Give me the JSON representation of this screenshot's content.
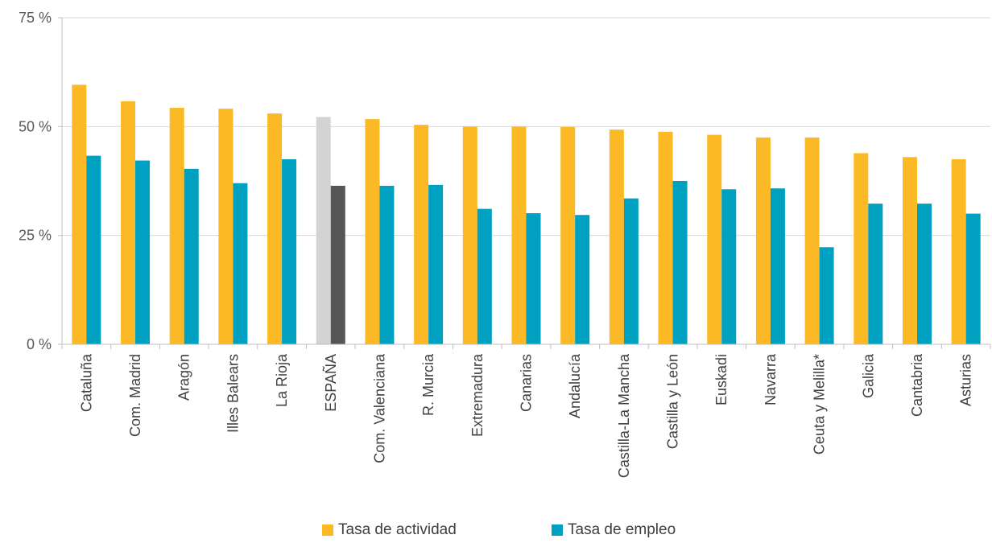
{
  "chart_data": {
    "type": "bar",
    "categories": [
      "Cataluña",
      "Com. Madrid",
      "Aragón",
      "Illes Balears",
      "La Rioja",
      "ESPAÑA",
      "Com. Valenciana",
      "R. Murcia",
      "Extremadura",
      "Canarias",
      "Andalucía",
      "Castilla-La Mancha",
      "Castilla y León",
      "Euskadi",
      "Navarra",
      "Ceuta y Melilla*",
      "Galicia",
      "Cantabria",
      "Asturias"
    ],
    "series": [
      {
        "name": "Tasa de actividad",
        "color": "#FBBA25",
        "highlight_color": "#D3D3D3",
        "values": [
          59.6,
          55.8,
          54.3,
          54.1,
          53.0,
          52.2,
          51.7,
          50.4,
          50.0,
          50.0,
          49.9,
          49.3,
          48.8,
          48.1,
          47.5,
          47.5,
          43.9,
          43.0,
          42.5
        ]
      },
      {
        "name": "Tasa de empleo",
        "color": "#00A0C0",
        "highlight_color": "#555555",
        "values": [
          43.3,
          42.2,
          40.3,
          37.0,
          42.5,
          36.4,
          36.4,
          36.6,
          31.1,
          30.1,
          29.7,
          33.5,
          37.5,
          35.6,
          35.8,
          22.3,
          32.3,
          32.3,
          30.0
        ]
      }
    ],
    "highlight_category": "ESPAÑA",
    "ylim": [
      0,
      75
    ],
    "yticks": [
      0,
      25,
      50,
      75
    ],
    "ytick_labels": [
      "0 %",
      "25 %",
      "50 %",
      "75 %"
    ],
    "grid": true,
    "legend_position": "bottom"
  }
}
